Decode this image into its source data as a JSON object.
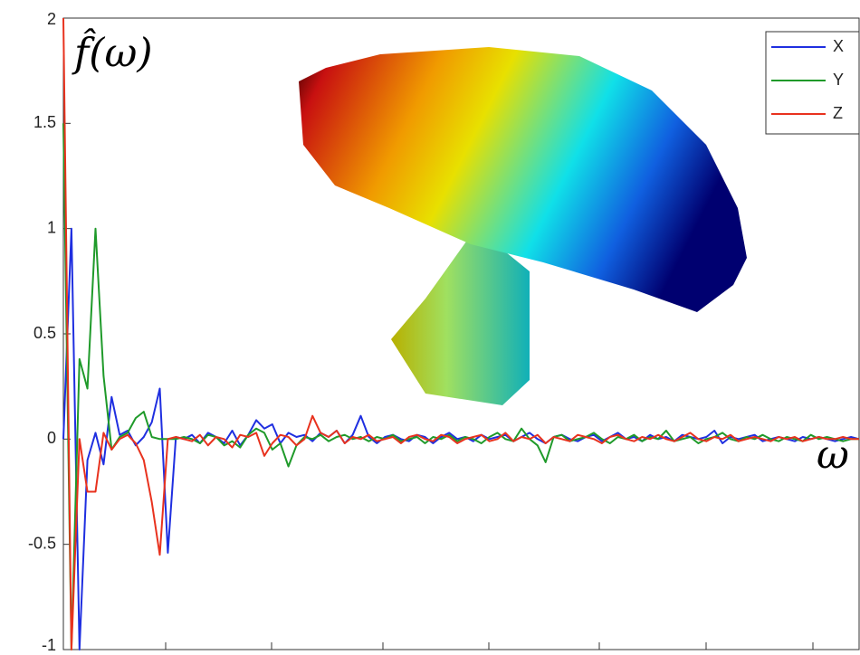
{
  "chart_data": {
    "type": "line",
    "y_label": "f̂(ω)",
    "x_label": "ω",
    "ylim": [
      -1,
      2
    ],
    "yticks": [
      -1,
      -0.5,
      0,
      0.5,
      1,
      1.5,
      2
    ],
    "legend": "top-right",
    "series": [
      {
        "name": "X",
        "color": "#1f2fe0",
        "values": [
          0,
          1,
          -1,
          -0.1,
          0.03,
          -0.12,
          0.2,
          0.02,
          0.04,
          -0.03,
          0.01,
          0.08,
          0.24,
          -0.54,
          0.01,
          0,
          0.02,
          -0.02,
          0.03,
          0.01,
          -0.02,
          0.04,
          -0.03,
          0.02,
          0.09,
          0.05,
          0.07,
          -0.02,
          0.03,
          0.01,
          0.02,
          -0.01,
          0.03,
          0.01,
          0.04,
          -0.02,
          0.02,
          0.11,
          0.01,
          -0.02,
          0.01,
          0.02,
          0,
          -0.01,
          0.02,
          0.01,
          -0.02,
          0.01,
          0.03,
          0,
          0.01,
          -0.01,
          0.02,
          0,
          0.01,
          0.02,
          -0.01,
          0.01,
          0.03,
          0,
          -0.02,
          0.01,
          0.02,
          0,
          -0.01,
          0.01,
          0.02,
          -0.01,
          0.01,
          0.03,
          0,
          0.01,
          -0.01,
          0.02,
          0,
          0.01,
          -0.01,
          0.02,
          0.01,
          0,
          0.01,
          0.04,
          -0.02,
          0.01,
          0,
          0.01,
          0.02,
          -0.01,
          0,
          0.01,
          0,
          -0.01,
          0.01,
          0,
          0.01,
          0,
          -0.01,
          0,
          0.01,
          0
        ]
      },
      {
        "name": "Y",
        "color": "#1f9a2a",
        "values": [
          1.5,
          -1,
          0.38,
          0.24,
          1,
          0.3,
          -0.05,
          0.01,
          0.03,
          0.1,
          0.13,
          0.01,
          0,
          0,
          0,
          0.01,
          0,
          -0.02,
          0.02,
          0.01,
          -0.03,
          -0.01,
          -0.04,
          0.02,
          0.05,
          0.03,
          -0.05,
          -0.02,
          -0.13,
          -0.03,
          0.01,
          0,
          0.02,
          -0.01,
          0.01,
          0.02,
          0,
          0.01,
          -0.01,
          0.01,
          0,
          0.02,
          -0.01,
          0,
          0.01,
          -0.02,
          0.01,
          0,
          0.02,
          -0.01,
          0.01,
          0,
          -0.02,
          0.01,
          0.03,
          0,
          -0.01,
          0.05,
          0,
          -0.03,
          -0.11,
          0.01,
          0.02,
          -0.01,
          0,
          0.01,
          0.03,
          0,
          -0.02,
          0.01,
          0,
          0.02,
          -0.01,
          0.01,
          0,
          0.04,
          -0.01,
          0,
          0.01,
          -0.02,
          0,
          0.01,
          0.03,
          0,
          -0.01,
          0.01,
          0,
          0.02,
          0,
          -0.01,
          0.01,
          0,
          -0.01,
          0.02,
          0,
          0.01,
          0,
          -0.01,
          0,
          0
        ]
      },
      {
        "name": "Z",
        "color": "#e8321e",
        "values": [
          2,
          -1,
          0,
          -0.25,
          -0.25,
          0.03,
          -0.05,
          0,
          0.02,
          -0.02,
          -0.1,
          -0.3,
          -0.55,
          0,
          0.01,
          0,
          -0.01,
          0.02,
          -0.03,
          0.01,
          0,
          -0.04,
          0.02,
          0.01,
          0.03,
          -0.08,
          -0.02,
          0.02,
          0.01,
          -0.03,
          0,
          0.11,
          0.03,
          0.01,
          0.04,
          -0.02,
          0.01,
          0,
          0.02,
          -0.01,
          0,
          0.01,
          -0.02,
          0.01,
          0.02,
          0,
          -0.01,
          0.02,
          0.01,
          -0.02,
          0,
          0.01,
          0.02,
          -0.01,
          0,
          0.03,
          -0.01,
          0.01,
          0,
          0.02,
          -0.02,
          0.01,
          0,
          -0.01,
          0.02,
          0.01,
          0,
          -0.02,
          0.01,
          0.02,
          0,
          -0.01,
          0.01,
          0,
          0.02,
          0,
          -0.01,
          0.01,
          0.03,
          0,
          -0.01,
          0.01,
          0,
          0.02,
          -0.01,
          0,
          0.01,
          0,
          -0.01,
          0.01,
          0,
          0.01,
          -0.01,
          0,
          0.01,
          0,
          0,
          0.01,
          0,
          0
        ]
      }
    ]
  }
}
